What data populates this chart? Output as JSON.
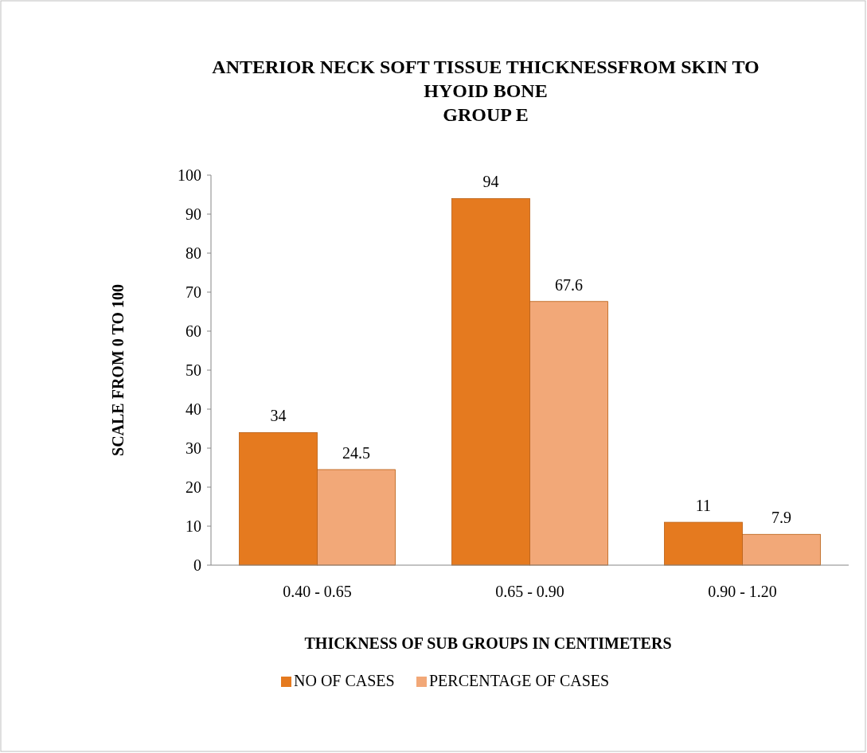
{
  "chart_data": {
    "type": "bar",
    "title": "ANTERIOR NECK SOFT TISSUE THICKNESSFROM SKIN TO\nHYOID BONE\nGROUP E",
    "xlabel": "THICKNESS OF SUB GROUPS IN CENTIMETERS",
    "ylabel": "SCALE FROM 0 TO 100",
    "categories": [
      "0.40 - 0.65",
      "0.65 - 0.90",
      "0.90 - 1.20"
    ],
    "series": [
      {
        "name": "NO OF CASES",
        "color": "#e57a1f",
        "values": [
          34,
          94,
          11
        ]
      },
      {
        "name": "PERCENTAGE OF CASES",
        "color": "#f2a878",
        "values": [
          24.5,
          67.6,
          7.9
        ]
      }
    ],
    "ylim": [
      0,
      100
    ],
    "yticks": [
      0,
      10,
      20,
      30,
      40,
      50,
      60,
      70,
      80,
      90,
      100
    ],
    "data_labels": true,
    "grid": false,
    "legend": "bottom"
  }
}
